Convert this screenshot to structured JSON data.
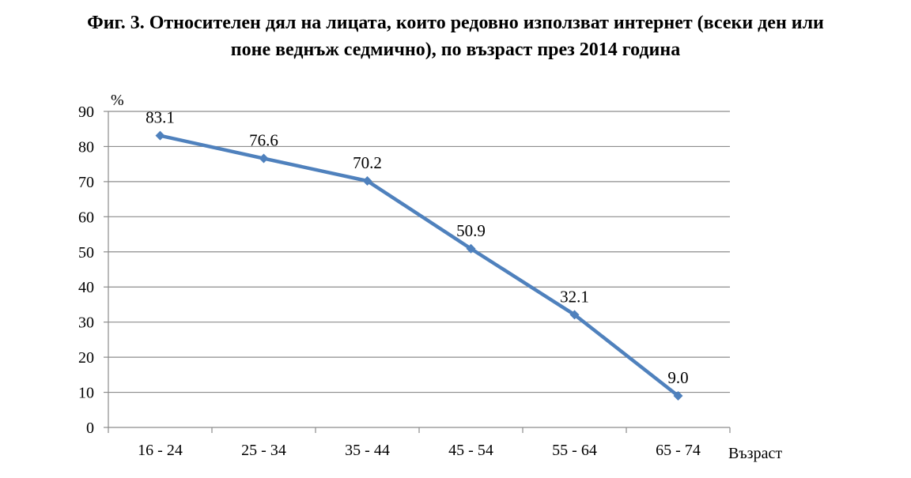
{
  "title_line1": "Фиг. 3. Относителен дял на лицата, които редовно използват интернет (всеки ден или",
  "title_line2": "поне веднъж седмично), по възраст през 2014 година",
  "chart_data": {
    "type": "line",
    "title": "Фиг. 3. Относителен дял на лицата, които редовно използват интернет (всеки ден или поне веднъж седмично), по възраст през 2014 година",
    "xlabel": "Възраст",
    "ylabel": "%",
    "categories": [
      "16 - 24",
      "25 - 34",
      "35 - 44",
      "45 - 54",
      "55 - 64",
      "65 - 74"
    ],
    "values": [
      83.1,
      76.6,
      70.2,
      50.9,
      32.1,
      9.0
    ],
    "data_labels": [
      "83.1",
      "76.6",
      "70.2",
      "50.9",
      "32.1",
      "9.0"
    ],
    "ylim": [
      0,
      90
    ],
    "yticks": [
      0,
      10,
      20,
      30,
      40,
      50,
      60,
      70,
      80,
      90
    ],
    "grid": true,
    "legend": "none",
    "line_color": "#4f81bd"
  }
}
